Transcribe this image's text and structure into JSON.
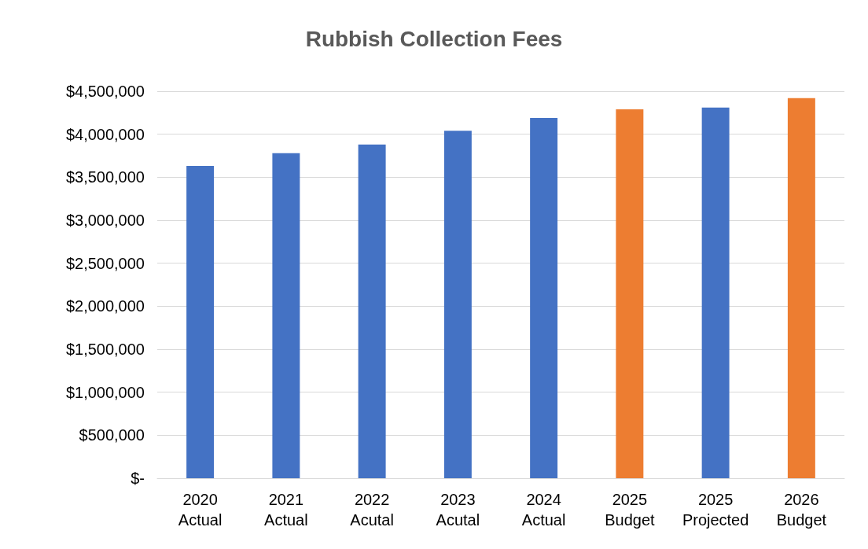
{
  "chart_data": {
    "type": "bar",
    "title": "Rubbish Collection Fees",
    "categories": [
      "2020\nActual",
      "2021\nActual",
      "2022\nAcutal",
      "2023\nAcutal",
      "2024\nActual",
      "2025\nBudget",
      "2025\nProjected",
      "2026\nBudget"
    ],
    "values": [
      3630000,
      3780000,
      3880000,
      4040000,
      4190000,
      4290000,
      4310000,
      4420000
    ],
    "colors": [
      "#4472c4",
      "#4472c4",
      "#4472c4",
      "#4472c4",
      "#4472c4",
      "#ed7d31",
      "#4472c4",
      "#ed7d31"
    ],
    "ylim": [
      0,
      4500000
    ],
    "yticks": [
      {
        "value": 0,
        "label": "$-"
      },
      {
        "value": 500000,
        "label": "$500,000"
      },
      {
        "value": 1000000,
        "label": "$1,000,000"
      },
      {
        "value": 1500000,
        "label": "$1,500,000"
      },
      {
        "value": 2000000,
        "label": "$2,000,000"
      },
      {
        "value": 2500000,
        "label": "$2,500,000"
      },
      {
        "value": 3000000,
        "label": "$3,000,000"
      },
      {
        "value": 3500000,
        "label": "$3,500,000"
      },
      {
        "value": 4000000,
        "label": "$4,000,000"
      },
      {
        "value": 4500000,
        "label": "$4,500,000"
      }
    ],
    "grid": true
  }
}
